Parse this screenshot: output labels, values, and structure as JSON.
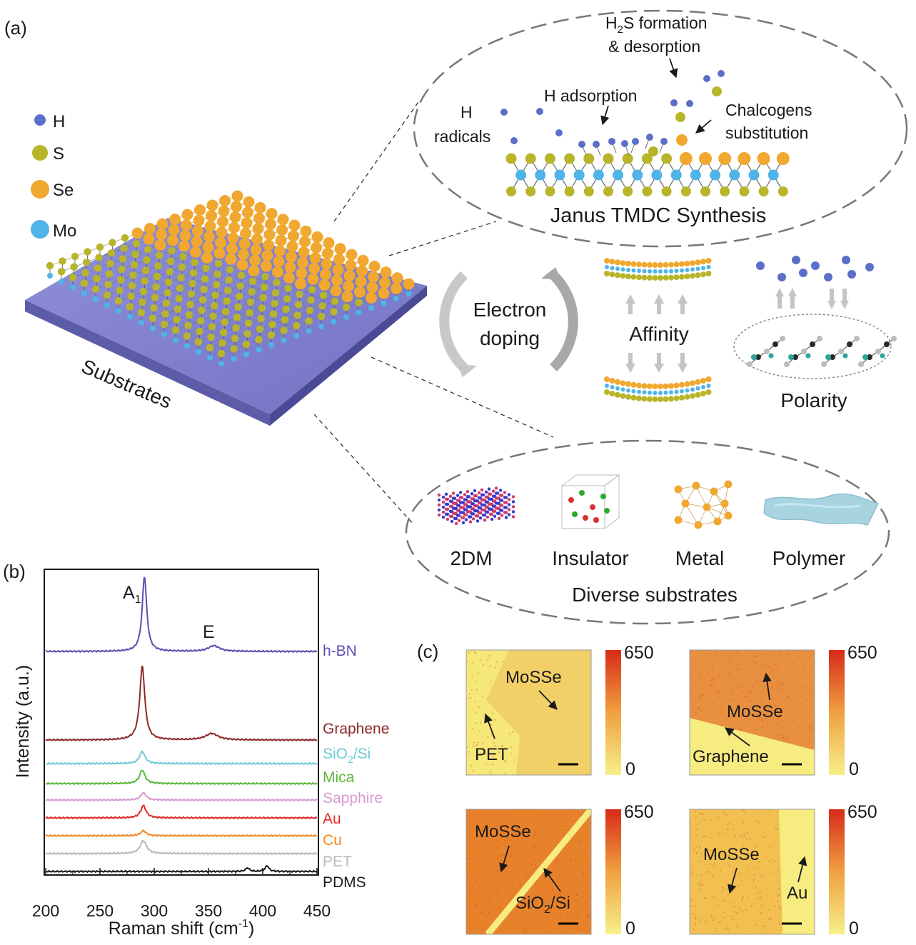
{
  "panel_labels": {
    "a": "(a)",
    "b": "(b)",
    "c": "(c)"
  },
  "legend": [
    {
      "label": "H",
      "color": "#5b6fc8"
    },
    {
      "label": "S",
      "color": "#b8b52a"
    },
    {
      "label": "Se",
      "color": "#f0a830"
    },
    {
      "label": "Mo",
      "color": "#4fb4e8"
    }
  ],
  "substrate_label": "Substrates",
  "synthesis": {
    "h2s_line1": "H",
    "h2s_sub": "2",
    "h2s_line1_rest": "S formation",
    "h2s_line2": "& desorption",
    "h_adsorption": "H adsorption",
    "h_radicals_1": "H",
    "h_radicals_2": "radicals",
    "chalcogens_1": "Chalcogens",
    "chalcogens_2": "substitution",
    "title": "Janus TMDC Synthesis"
  },
  "mechanism": {
    "electron_1": "Electron",
    "electron_2": "doping",
    "affinity": "Affinity",
    "polarity": "Polarity"
  },
  "substrates": {
    "items": [
      "2DM",
      "Insulator",
      "Metal",
      "Polymer"
    ],
    "title": "Diverse substrates"
  },
  "chart_data": {
    "type": "line",
    "xlabel": "Raman shift (cm",
    "xlabel_sup": "-1",
    "xlabel_end": ")",
    "ylabel": "Intensity (a.u.)",
    "xlim": [
      200,
      450
    ],
    "xticks": [
      "200",
      "250",
      "300",
      "350",
      "400",
      "450"
    ],
    "xtick_values": [
      200,
      250,
      300,
      350,
      400,
      450
    ],
    "peak_labels": [
      {
        "text": "A",
        "sub": "1",
        "x": 290
      },
      {
        "text": "E",
        "sub": "",
        "x": 355
      }
    ],
    "series": [
      {
        "name": "h-BN",
        "color": "#5a4fb0",
        "baseline": 0.0,
        "peaks": [
          {
            "x": 291,
            "h": 105,
            "w": 2.5
          },
          {
            "x": 355,
            "h": 8,
            "w": 6
          }
        ]
      },
      {
        "name": "Graphene",
        "color": "#8b2a2a",
        "baseline": 0.0,
        "peaks": [
          {
            "x": 289,
            "h": 103,
            "w": 2.8
          },
          {
            "x": 353,
            "h": 9,
            "w": 7
          }
        ]
      },
      {
        "name": "SiO2/Si",
        "sub": "2",
        "prefix": "SiO",
        "suffix": "/Si",
        "color": "#6fc8d8",
        "baseline": 0.0,
        "peaks": [
          {
            "x": 289,
            "h": 17,
            "w": 3
          }
        ]
      },
      {
        "name": "Mica",
        "color": "#5cb83a",
        "baseline": 0.0,
        "peaks": [
          {
            "x": 289,
            "h": 19,
            "w": 3
          }
        ]
      },
      {
        "name": "Sapphire",
        "color": "#d89ad0",
        "baseline": 0.0,
        "peaks": [
          {
            "x": 290,
            "h": 10,
            "w": 3
          }
        ]
      },
      {
        "name": "Au",
        "color": "#e02828",
        "baseline": 0.0,
        "peaks": [
          {
            "x": 290,
            "h": 17,
            "w": 3
          }
        ]
      },
      {
        "name": "Cu",
        "color": "#f08a20",
        "baseline": 0.0,
        "peaks": [
          {
            "x": 290,
            "h": 7,
            "w": 3
          }
        ]
      },
      {
        "name": "PET",
        "color": "#b8b8b8",
        "baseline": 0.0,
        "peaks": [
          {
            "x": 290,
            "h": 18,
            "w": 3.5
          }
        ]
      },
      {
        "name": "PDMS",
        "color": "#1a1a1a",
        "baseline": 0.0,
        "peaks": [
          {
            "x": 386,
            "h": 5,
            "w": 2
          },
          {
            "x": 404,
            "h": 8,
            "w": 2
          }
        ]
      }
    ]
  },
  "maps": [
    {
      "labels": [
        "MoSSe",
        "PET"
      ],
      "scale_max": "650",
      "scale_min": "0"
    },
    {
      "labels": [
        "MoSSe",
        "Graphene"
      ],
      "scale_max": "650",
      "scale_min": "0"
    },
    {
      "labels": [
        "MoSSe",
        "SiO2/Si"
      ],
      "scale_max": "650",
      "scale_min": "0"
    },
    {
      "labels": [
        "MoSSe",
        "Au"
      ],
      "scale_max": "650",
      "scale_min": "0"
    }
  ]
}
